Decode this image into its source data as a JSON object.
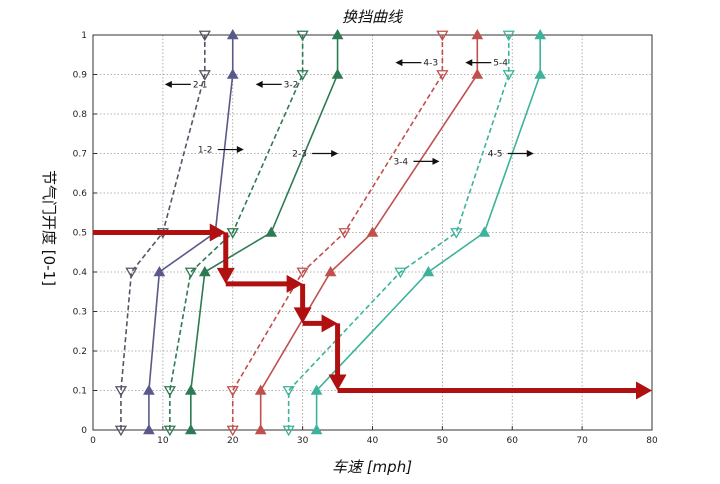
{
  "chart_data": {
    "type": "line",
    "title": "换挡曲线",
    "xlabel": "车速 [mph]",
    "ylabel": "节气门开度 [0-1]",
    "xlim": [
      0,
      80
    ],
    "ylim": [
      0,
      1
    ],
    "xticks": [
      "0",
      "10",
      "20",
      "30",
      "40",
      "50",
      "60",
      "70",
      "80"
    ],
    "yticks": [
      "0",
      "0.1",
      "0.2",
      "0.3",
      "0.4",
      "0.5",
      "0.6",
      "0.7",
      "0.8",
      "0.9",
      "1"
    ],
    "grid": true,
    "series": [
      {
        "name": "2-1",
        "style": "dashed",
        "marker": "triangle-down",
        "color": "#555566",
        "points": [
          [
            4,
            0
          ],
          [
            4,
            0.1
          ],
          [
            5.5,
            0.4
          ],
          [
            10,
            0.5
          ],
          [
            16,
            0.9
          ],
          [
            16,
            1
          ]
        ]
      },
      {
        "name": "1-2",
        "style": "solid",
        "marker": "triangle-up",
        "color": "#5a5a8a",
        "points": [
          [
            8,
            0
          ],
          [
            8,
            0.1
          ],
          [
            9.5,
            0.4
          ],
          [
            17.5,
            0.5
          ],
          [
            20,
            0.9
          ],
          [
            20,
            1
          ]
        ]
      },
      {
        "name": "3-2",
        "style": "dashed",
        "marker": "triangle-down",
        "color": "#2e7a52",
        "points": [
          [
            11,
            0
          ],
          [
            11,
            0.1
          ],
          [
            14,
            0.4
          ],
          [
            20,
            0.5
          ],
          [
            30,
            0.9
          ],
          [
            30,
            1
          ]
        ]
      },
      {
        "name": "2-3",
        "style": "solid",
        "marker": "triangle-up",
        "color": "#2e7a52",
        "points": [
          [
            14,
            0
          ],
          [
            14,
            0.1
          ],
          [
            16,
            0.4
          ],
          [
            25.5,
            0.5
          ],
          [
            35,
            0.9
          ],
          [
            35,
            1
          ]
        ]
      },
      {
        "name": "4-3",
        "style": "dashed",
        "marker": "triangle-down",
        "color": "#c0504d",
        "points": [
          [
            20,
            0
          ],
          [
            20,
            0.1
          ],
          [
            30,
            0.4
          ],
          [
            36,
            0.5
          ],
          [
            50,
            0.9
          ],
          [
            50,
            1
          ]
        ]
      },
      {
        "name": "3-4",
        "style": "solid",
        "marker": "triangle-up",
        "color": "#c0504d",
        "points": [
          [
            24,
            0
          ],
          [
            24,
            0.1
          ],
          [
            34,
            0.4
          ],
          [
            40,
            0.5
          ],
          [
            55,
            0.9
          ],
          [
            55,
            1
          ]
        ]
      },
      {
        "name": "5-4",
        "style": "dashed",
        "marker": "triangle-down",
        "color": "#3cb39a",
        "points": [
          [
            28,
            0
          ],
          [
            28,
            0.1
          ],
          [
            44,
            0.4
          ],
          [
            52,
            0.5
          ],
          [
            59.5,
            0.9
          ],
          [
            59.5,
            1
          ]
        ]
      },
      {
        "name": "4-5",
        "style": "solid",
        "marker": "triangle-up",
        "color": "#3cb39a",
        "points": [
          [
            32,
            0
          ],
          [
            32,
            0.1
          ],
          [
            48,
            0.4
          ],
          [
            56,
            0.5
          ],
          [
            64,
            0.9
          ],
          [
            64,
            1
          ]
        ]
      }
    ],
    "annotations": [
      {
        "text": "2-1",
        "at": [
          14,
          0.875
        ],
        "arrow": "left"
      },
      {
        "text": "1-2",
        "at": [
          15,
          0.71
        ],
        "arrow": "right"
      },
      {
        "text": "3-2",
        "at": [
          27,
          0.875
        ],
        "arrow": "left"
      },
      {
        "text": "2-3",
        "at": [
          28.5,
          0.7
        ],
        "arrow": "right"
      },
      {
        "text": "4-3",
        "at": [
          47,
          0.93
        ],
        "arrow": "left"
      },
      {
        "text": "3-4",
        "at": [
          43,
          0.68
        ],
        "arrow": "right"
      },
      {
        "text": "5-4",
        "at": [
          57,
          0.93
        ],
        "arrow": "left"
      },
      {
        "text": "4-5",
        "at": [
          56.5,
          0.7
        ],
        "arrow": "right"
      }
    ],
    "highlight_path": {
      "color": "#b01010",
      "points": [
        [
          0,
          0.5
        ],
        [
          19,
          0.5
        ],
        [
          19,
          0.37
        ],
        [
          30,
          0.37
        ],
        [
          30,
          0.27
        ],
        [
          35,
          0.27
        ],
        [
          35,
          0.1
        ],
        [
          80,
          0.1
        ]
      ]
    }
  }
}
